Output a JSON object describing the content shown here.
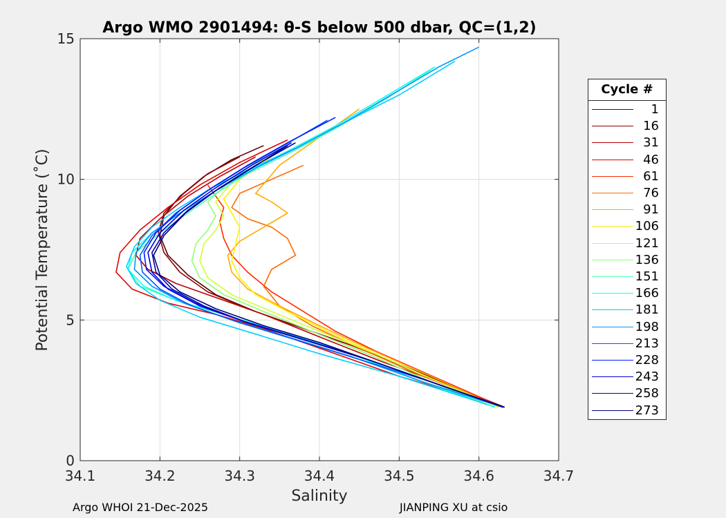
{
  "chart_data": {
    "type": "line",
    "title": "Argo WMO 2901494: θ-S below 500 dbar,  QC=(1,2)",
    "xlabel": "Salinity",
    "ylabel": "Potential Temperature (˚C)",
    "xlim": [
      34.1,
      34.7
    ],
    "ylim": [
      0,
      15
    ],
    "xticks": [
      "34.1",
      "34.2",
      "34.3",
      "34.4",
      "34.5",
      "34.6",
      "34.7"
    ],
    "yticks": [
      "0",
      "5",
      "10",
      "15"
    ],
    "grid": true,
    "legend": {
      "title": "Cycle #",
      "placement": "outside-right",
      "entries": [
        {
          "label": "1",
          "color": "#5a0000"
        },
        {
          "label": "16",
          "color": "#8a0000"
        },
        {
          "label": "31",
          "color": "#b80000"
        },
        {
          "label": "46",
          "color": "#e00000"
        },
        {
          "label": "61",
          "color": "#ff2a00"
        },
        {
          "label": "76",
          "color": "#ff6a00"
        },
        {
          "label": "91",
          "color": "#ffaa00"
        },
        {
          "label": "106",
          "color": "#ffee00"
        },
        {
          "label": "121",
          "color": "#cfff30"
        },
        {
          "label": "136",
          "color": "#8cff73"
        },
        {
          "label": "151",
          "color": "#4fffb0"
        },
        {
          "label": "166",
          "color": "#10ffef"
        },
        {
          "label": "181",
          "color": "#00d0ff"
        },
        {
          "label": "198",
          "color": "#0094ff"
        },
        {
          "label": "213",
          "color": "#0058ff"
        },
        {
          "label": "228",
          "color": "#001cff"
        },
        {
          "label": "243",
          "color": "#0000d8"
        },
        {
          "label": "258",
          "color": "#0000a8"
        },
        {
          "label": "273",
          "color": "#00007a"
        }
      ]
    },
    "series": [
      {
        "name": "1",
        "color": "#5a0000",
        "salinity": [
          34.632,
          34.58,
          34.52,
          34.45,
          34.38,
          34.32,
          34.27,
          34.235,
          34.21,
          34.2,
          34.205,
          34.225,
          34.255,
          34.29,
          34.33
        ],
        "theta": [
          1.9,
          2.5,
          3.2,
          4.0,
          4.7,
          5.3,
          5.9,
          6.6,
          7.3,
          8.0,
          8.7,
          9.4,
          10.1,
          10.7,
          11.2
        ]
      },
      {
        "name": "16",
        "color": "#8a0000",
        "salinity": [
          34.632,
          34.58,
          34.51,
          34.44,
          34.37,
          34.31,
          34.26,
          34.225,
          34.205,
          34.198,
          34.205,
          34.23,
          34.26,
          34.3
        ],
        "theta": [
          1.9,
          2.5,
          3.3,
          4.1,
          4.8,
          5.4,
          6.0,
          6.7,
          7.4,
          8.1,
          8.8,
          9.5,
          10.2,
          10.8
        ]
      },
      {
        "name": "31",
        "color": "#b80000",
        "salinity": [
          34.632,
          34.56,
          34.48,
          34.4,
          34.33,
          34.27,
          34.22,
          34.185,
          34.17,
          34.175,
          34.2,
          34.235,
          34.275,
          34.32
        ],
        "theta": [
          1.9,
          2.7,
          3.5,
          4.4,
          5.2,
          5.8,
          6.3,
          6.8,
          7.3,
          7.9,
          8.6,
          9.4,
          10.1,
          10.8
        ]
      },
      {
        "name": "46",
        "color": "#e00000",
        "salinity": [
          34.62,
          34.5,
          34.4,
          34.33,
          34.27,
          34.21,
          34.165,
          34.145,
          34.15,
          34.175,
          34.21,
          34.25,
          34.3,
          34.36
        ],
        "theta": [
          2.0,
          3.0,
          4.0,
          4.7,
          5.2,
          5.6,
          6.1,
          6.7,
          7.4,
          8.2,
          9.0,
          9.8,
          10.6,
          11.4
        ]
      },
      {
        "name": "61",
        "color": "#ff2a00",
        "salinity": [
          34.63,
          34.55,
          34.47,
          34.42,
          34.38,
          34.34,
          34.31,
          34.29,
          34.28,
          34.275,
          34.28,
          34.27,
          34.26
        ],
        "theta": [
          1.9,
          2.9,
          3.9,
          4.6,
          5.3,
          6.0,
          6.7,
          7.3,
          7.9,
          8.5,
          9.0,
          9.4,
          9.8
        ]
      },
      {
        "name": "76",
        "color": "#ff6a00",
        "salinity": [
          34.62,
          34.53,
          34.45,
          34.39,
          34.35,
          34.33,
          34.34,
          34.37,
          34.36,
          34.34,
          34.31,
          34.29,
          34.3,
          34.34,
          34.38
        ],
        "theta": [
          2.0,
          3.0,
          4.0,
          4.8,
          5.5,
          6.2,
          6.8,
          7.3,
          7.9,
          8.3,
          8.6,
          9.0,
          9.5,
          10.0,
          10.5
        ]
      },
      {
        "name": "91",
        "color": "#ffaa00",
        "salinity": [
          34.625,
          34.54,
          34.46,
          34.4,
          34.35,
          34.31,
          34.29,
          34.285,
          34.3,
          34.33,
          34.36,
          34.34,
          34.32,
          34.35,
          34.4,
          34.45
        ],
        "theta": [
          1.9,
          3.0,
          4.0,
          4.8,
          5.5,
          6.1,
          6.7,
          7.3,
          7.8,
          8.3,
          8.8,
          9.2,
          9.5,
          10.5,
          11.5,
          12.5
        ]
      },
      {
        "name": "106",
        "color": "#ffee00",
        "salinity": [
          34.625,
          34.55,
          34.47,
          34.41,
          34.36,
          34.32,
          34.3,
          34.29,
          34.295,
          34.3,
          34.29,
          34.28,
          34.3,
          34.34
        ],
        "theta": [
          1.9,
          2.8,
          3.8,
          4.6,
          5.3,
          5.9,
          6.5,
          7.1,
          7.7,
          8.3,
          8.8,
          9.3,
          10.0,
          10.8
        ]
      },
      {
        "name": "121",
        "color": "#cfff30",
        "salinity": [
          34.625,
          34.55,
          34.47,
          34.4,
          34.34,
          34.29,
          34.26,
          34.25,
          34.255,
          34.27,
          34.28,
          34.27,
          34.29,
          34.33
        ],
        "theta": [
          1.9,
          2.8,
          3.8,
          4.6,
          5.3,
          5.9,
          6.5,
          7.1,
          7.7,
          8.2,
          8.7,
          9.2,
          9.9,
          10.7
        ]
      },
      {
        "name": "136",
        "color": "#8cff73",
        "salinity": [
          34.62,
          34.54,
          34.46,
          34.39,
          34.33,
          34.28,
          34.25,
          34.24,
          34.245,
          34.26,
          34.27,
          34.26,
          34.29,
          34.33,
          34.38
        ],
        "theta": [
          1.9,
          2.8,
          3.8,
          4.6,
          5.3,
          5.9,
          6.5,
          7.1,
          7.7,
          8.2,
          8.7,
          9.2,
          10.0,
          10.8,
          11.6
        ]
      },
      {
        "name": "151",
        "color": "#4fffb0",
        "salinity": [
          34.62,
          34.52,
          34.43,
          34.35,
          34.28,
          34.22,
          34.175,
          34.16,
          34.17,
          34.2,
          34.235,
          34.27,
          34.31,
          34.36,
          34.42,
          34.48,
          34.54
        ],
        "theta": [
          1.9,
          2.9,
          3.9,
          4.6,
          5.2,
          5.7,
          6.2,
          6.8,
          7.4,
          8.1,
          8.8,
          9.5,
          10.2,
          10.9,
          11.8,
          12.8,
          13.9
        ]
      },
      {
        "name": "166",
        "color": "#10ffef",
        "salinity": [
          34.62,
          34.52,
          34.43,
          34.35,
          34.28,
          34.22,
          34.18,
          34.16,
          34.165,
          34.19,
          34.225,
          34.265,
          34.31,
          34.36,
          34.42,
          34.48,
          34.545
        ],
        "theta": [
          1.9,
          2.9,
          3.9,
          4.6,
          5.2,
          5.7,
          6.2,
          6.8,
          7.4,
          8.1,
          8.8,
          9.5,
          10.3,
          11.0,
          11.9,
          12.9,
          14.0
        ]
      },
      {
        "name": "181",
        "color": "#00d0ff",
        "salinity": [
          34.61,
          34.5,
          34.4,
          34.32,
          34.25,
          34.2,
          34.17,
          34.158,
          34.168,
          34.19,
          34.225,
          34.265,
          34.315,
          34.37,
          34.43,
          34.5,
          34.57
        ],
        "theta": [
          2.0,
          3.0,
          3.8,
          4.5,
          5.1,
          5.7,
          6.3,
          6.9,
          7.6,
          8.3,
          9.0,
          9.7,
          10.4,
          11.1,
          12.0,
          13.0,
          14.2
        ]
      },
      {
        "name": "198",
        "color": "#0094ff",
        "salinity": [
          34.63,
          34.53,
          34.44,
          34.36,
          34.29,
          34.23,
          34.19,
          34.168,
          34.17,
          34.19,
          34.225,
          34.27,
          34.32,
          34.37,
          34.43,
          34.49,
          34.55,
          34.6
        ],
        "theta": [
          1.9,
          2.8,
          3.7,
          4.4,
          5.0,
          5.6,
          6.2,
          6.8,
          7.4,
          8.1,
          8.8,
          9.6,
          10.4,
          11.1,
          12.0,
          13.0,
          14.0,
          14.7
        ]
      },
      {
        "name": "213",
        "color": "#0058ff",
        "salinity": [
          34.63,
          34.54,
          34.45,
          34.37,
          34.3,
          34.24,
          34.2,
          34.178,
          34.175,
          34.19,
          34.22,
          34.26,
          34.305,
          34.355,
          34.41
        ],
        "theta": [
          1.9,
          2.8,
          3.6,
          4.3,
          4.9,
          5.5,
          6.1,
          6.7,
          7.3,
          8.0,
          8.8,
          9.6,
          10.4,
          11.2,
          12.1
        ]
      },
      {
        "name": "228",
        "color": "#001cff",
        "salinity": [
          34.63,
          34.54,
          34.45,
          34.37,
          34.3,
          34.245,
          34.205,
          34.183,
          34.18,
          34.195,
          34.225,
          34.265,
          34.31,
          34.36,
          34.42
        ],
        "theta": [
          1.9,
          2.8,
          3.7,
          4.4,
          5.0,
          5.6,
          6.2,
          6.8,
          7.4,
          8.1,
          8.9,
          9.7,
          10.5,
          11.3,
          12.2
        ]
      },
      {
        "name": "243",
        "color": "#0000d8",
        "salinity": [
          34.632,
          34.55,
          34.46,
          34.38,
          34.31,
          34.25,
          34.21,
          34.19,
          34.185,
          34.2,
          34.23,
          34.27,
          34.315,
          34.365
        ],
        "theta": [
          1.9,
          2.7,
          3.6,
          4.3,
          4.9,
          5.5,
          6.1,
          6.7,
          7.4,
          8.1,
          8.9,
          9.7,
          10.5,
          11.3
        ]
      },
      {
        "name": "258",
        "color": "#0000a8",
        "salinity": [
          34.632,
          34.55,
          34.46,
          34.38,
          34.31,
          34.255,
          34.215,
          34.195,
          34.19,
          34.205,
          34.235,
          34.275,
          34.32,
          34.37
        ],
        "theta": [
          1.9,
          2.7,
          3.6,
          4.3,
          4.9,
          5.5,
          6.1,
          6.7,
          7.4,
          8.1,
          8.9,
          9.7,
          10.5,
          11.3
        ]
      },
      {
        "name": "273",
        "color": "#00007a",
        "salinity": [
          34.632,
          34.56,
          34.48,
          34.4,
          34.33,
          34.27,
          34.225,
          34.2,
          34.192,
          34.205,
          34.232,
          34.27,
          34.315,
          34.36
        ],
        "theta": [
          1.9,
          2.6,
          3.4,
          4.2,
          4.8,
          5.4,
          6.0,
          6.6,
          7.3,
          8.0,
          8.8,
          9.6,
          10.4,
          11.2
        ]
      }
    ]
  },
  "footer": {
    "left": "Argo WHOI 21-Dec-2025",
    "right": "JIANPING XU at csio"
  }
}
